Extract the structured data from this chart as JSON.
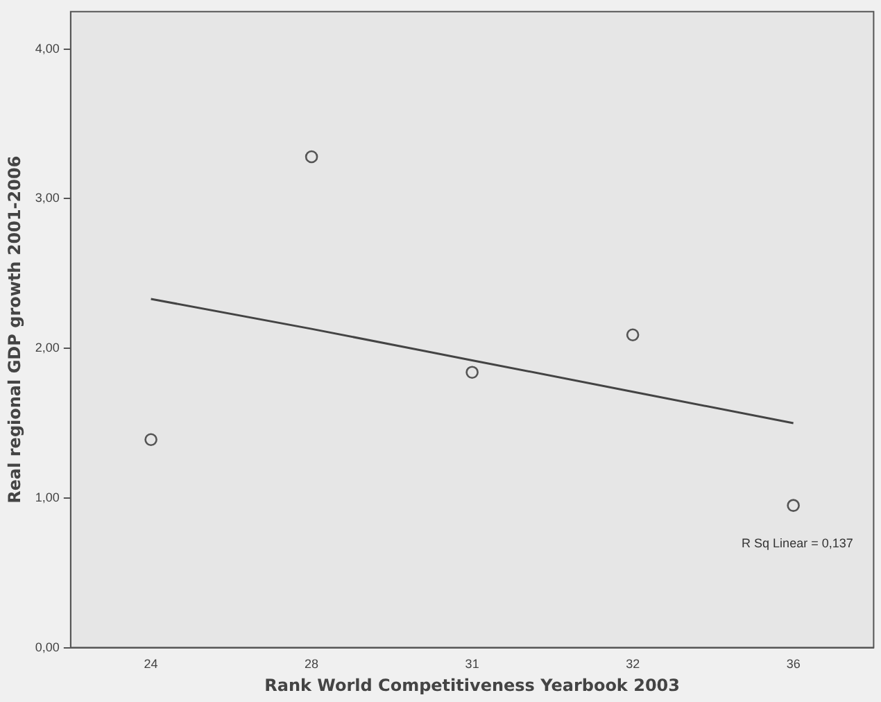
{
  "chart_data": {
    "type": "scatter",
    "xlabel": "Rank World Competitiveness Yearbook 2003",
    "ylabel": "Real regional GDP growth 2001-2006",
    "categories": [
      "24",
      "28",
      "31",
      "32",
      "36"
    ],
    "series": [
      {
        "color": "#555555",
        "values": [
          1.39,
          3.28,
          1.84,
          2.09,
          0.95
        ],
        "marker": "circle"
      },
      {
        "type": "line",
        "color": "#444444",
        "x": [
          "24",
          "28",
          "31",
          "32",
          "36"
        ],
        "values": [
          2.33,
          2.13,
          1.92,
          1.71,
          1.5
        ],
        "marker": "none"
      }
    ],
    "ylim": [
      0,
      4.25
    ],
    "yticks": [
      {
        "value": 0,
        "label": "0,00"
      },
      {
        "value": 1,
        "label": "1,00"
      },
      {
        "value": 2,
        "label": "2,00"
      },
      {
        "value": 3,
        "label": "3,00"
      },
      {
        "value": 4,
        "label": "4,00"
      }
    ],
    "annotations": [
      "R Sq Linear = 0,137"
    ],
    "grid": false,
    "legend": false
  }
}
